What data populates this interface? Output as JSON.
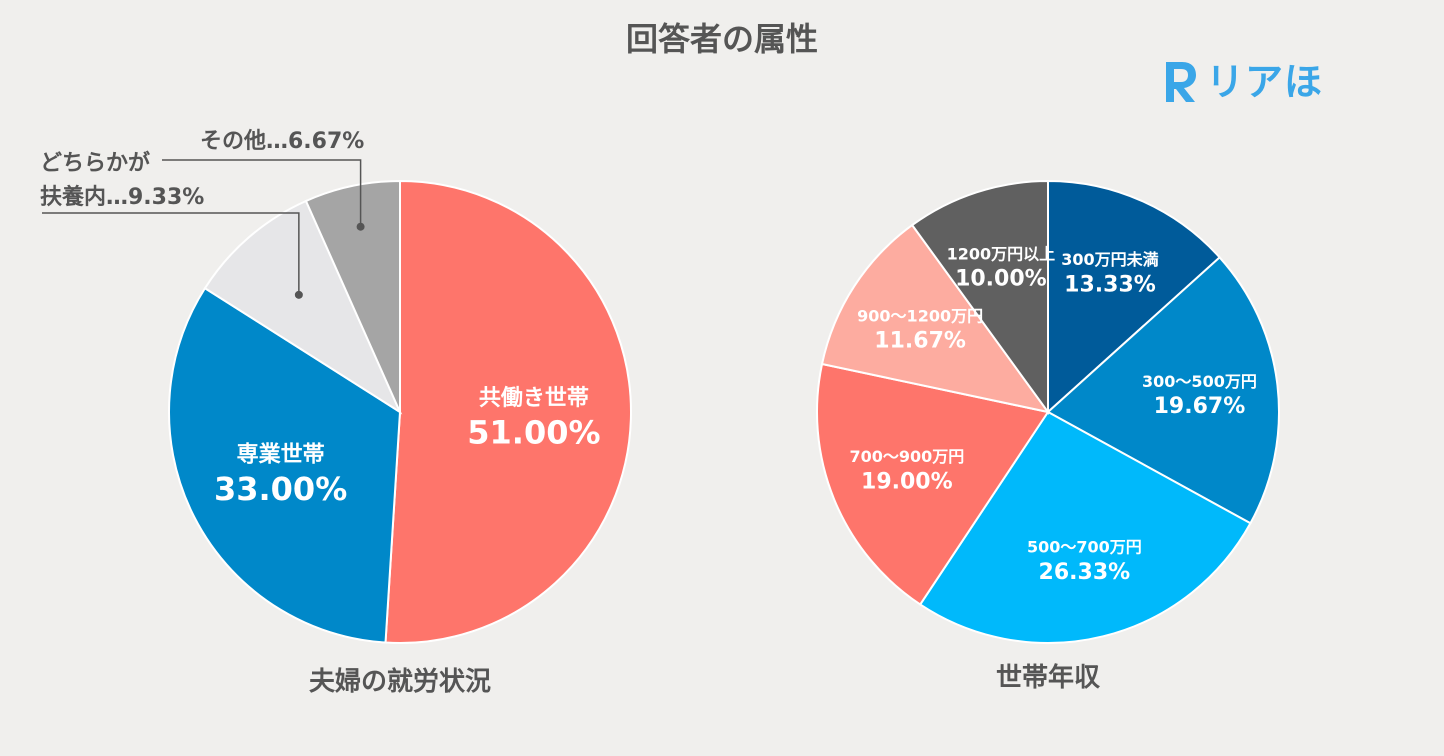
{
  "page": {
    "title": "回答者の属性",
    "brand": "リアほ",
    "brand_initial": "R"
  },
  "colors": {
    "background": "#f0efed",
    "text": "#555555",
    "brand": "#3aa6e8"
  },
  "chart_data": [
    {
      "type": "pie",
      "title": "夫婦の就労状況",
      "slices": [
        {
          "label": "共働き世帯",
          "value": 51.0,
          "display": "51.00%",
          "color": "#fe756b",
          "label_style": "inside"
        },
        {
          "label": "専業世帯",
          "value": 33.0,
          "display": "33.00%",
          "color": "#0088c9",
          "label_style": "inside"
        },
        {
          "label": "どちらかが扶養内",
          "label_lines": [
            "どちらかが",
            "扶養内"
          ],
          "value": 9.33,
          "display": "9.33%",
          "color": "#e6e6e8",
          "label_style": "callout"
        },
        {
          "label": "その他",
          "label_lines": [
            "その他"
          ],
          "value": 6.67,
          "display": "6.67%",
          "color": "#a5a5a5",
          "label_style": "callout"
        }
      ]
    },
    {
      "type": "pie",
      "title": "世帯年収",
      "slices": [
        {
          "label": "300万円未満",
          "value": 13.33,
          "display": "13.33%",
          "color": "#005b9a"
        },
        {
          "label": "300〜500万円",
          "value": 19.67,
          "display": "19.67%",
          "color": "#0088c9"
        },
        {
          "label": "500〜700万円",
          "value": 26.33,
          "display": "26.33%",
          "color": "#00b9fb"
        },
        {
          "label": "700〜900万円",
          "value": 19.0,
          "display": "19.00%",
          "color": "#fe756b"
        },
        {
          "label": "900〜1200万円",
          "value": 11.67,
          "display": "11.67%",
          "color": "#fdaca0"
        },
        {
          "label": "1200万円以上",
          "value": 10.0,
          "display": "10.00%",
          "color": "#606060"
        }
      ]
    }
  ]
}
